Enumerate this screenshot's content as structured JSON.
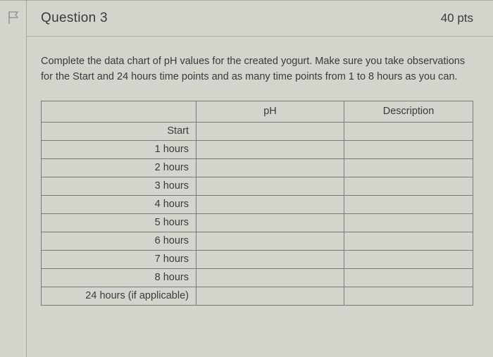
{
  "header": {
    "title": "Question 3",
    "points": "40 pts"
  },
  "instructions": "Complete the data chart of pH values for the created yogurt.  Make sure you take observations for the Start and 24 hours time points and as many time points from 1 to 8 hours as you can.",
  "table": {
    "headers": {
      "label": "",
      "ph": "pH",
      "desc": "Description"
    },
    "rows": [
      {
        "label": "Start",
        "ph": "",
        "desc": ""
      },
      {
        "label": "1 hours",
        "ph": "",
        "desc": ""
      },
      {
        "label": "2 hours",
        "ph": "",
        "desc": ""
      },
      {
        "label": "3 hours",
        "ph": "",
        "desc": ""
      },
      {
        "label": "4 hours",
        "ph": "",
        "desc": ""
      },
      {
        "label": "5 hours",
        "ph": "",
        "desc": ""
      },
      {
        "label": "6 hours",
        "ph": "",
        "desc": ""
      },
      {
        "label": "7 hours",
        "ph": "",
        "desc": ""
      },
      {
        "label": "8 hours",
        "ph": "",
        "desc": ""
      },
      {
        "label": "24 hours (if applicable)",
        "ph": "",
        "desc": ""
      }
    ]
  },
  "colors": {
    "background": "#d4d4cc",
    "border": "#aaa8a0",
    "table_border": "#7a7a74",
    "text": "#3a3a38",
    "flag_stroke": "#9a9a94"
  }
}
